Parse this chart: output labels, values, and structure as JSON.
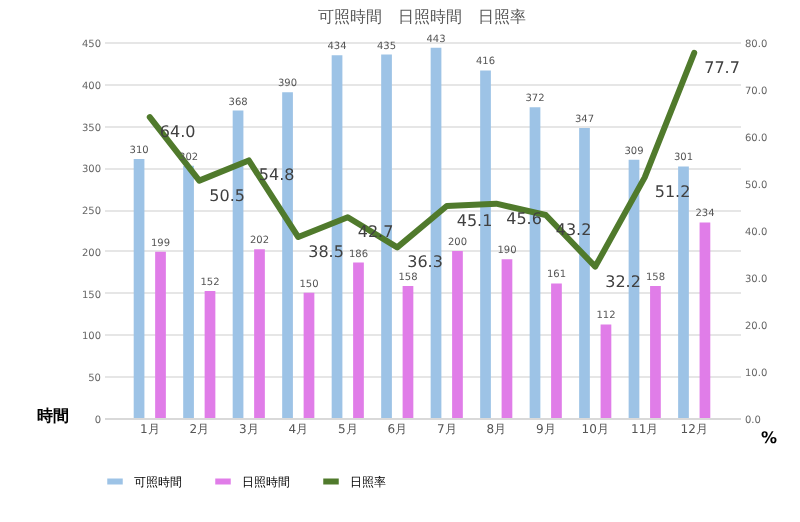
{
  "chart_data": {
    "type": "bar",
    "title": "可照時間　日照時間　日照率",
    "ylabel": "時間",
    "y2label": "%",
    "categories": [
      "1月",
      "2月",
      "3月",
      "4月",
      "5月",
      "6月",
      "7月",
      "8月",
      "9月",
      "10月",
      "11月",
      "12月"
    ],
    "series": [
      {
        "name": "可照時間",
        "color": "#9dc3e6",
        "values": [
          310,
          302,
          368,
          390,
          434,
          435,
          443,
          416,
          372,
          347,
          309,
          301
        ]
      },
      {
        "name": "日照時間",
        "color": "#e07de8",
        "values": [
          199,
          152,
          202,
          150,
          186,
          158,
          200,
          190,
          161,
          112,
          158,
          234
        ]
      },
      {
        "name": "日照率",
        "type": "line",
        "axis": "y2",
        "color": "#507a2c",
        "values": [
          64.0,
          50.5,
          54.8,
          38.5,
          42.7,
          36.3,
          45.1,
          45.6,
          43.2,
          32.2,
          51.2,
          77.7
        ],
        "value_labels": [
          "64.0",
          "50.5",
          "54.8",
          "38.5",
          "42.7",
          "36.3",
          "45.1",
          "45.6",
          "43.2",
          "32.2",
          "51.2",
          "77.7"
        ]
      }
    ],
    "ylim": [
      0,
      450
    ],
    "yticks": [
      0,
      50,
      100,
      150,
      200,
      250,
      300,
      350,
      400,
      450
    ],
    "y2lim": [
      0,
      80
    ],
    "y2ticks": [
      {
        "value": 0,
        "label": "0.0"
      },
      {
        "value": 10,
        "label": "10.0"
      },
      {
        "value": 20,
        "label": "20.0"
      },
      {
        "value": 30,
        "label": "30.0"
      },
      {
        "value": 40,
        "label": "40.0"
      },
      {
        "value": 50,
        "label": "50.0"
      },
      {
        "value": 60,
        "label": "60.0"
      },
      {
        "value": 70,
        "label": "70.0"
      },
      {
        "value": 80,
        "label": "80.0"
      }
    ],
    "data_labels": true,
    "grid": "y",
    "legend": "bottom",
    "marker": "none",
    "line_style": "solid"
  }
}
